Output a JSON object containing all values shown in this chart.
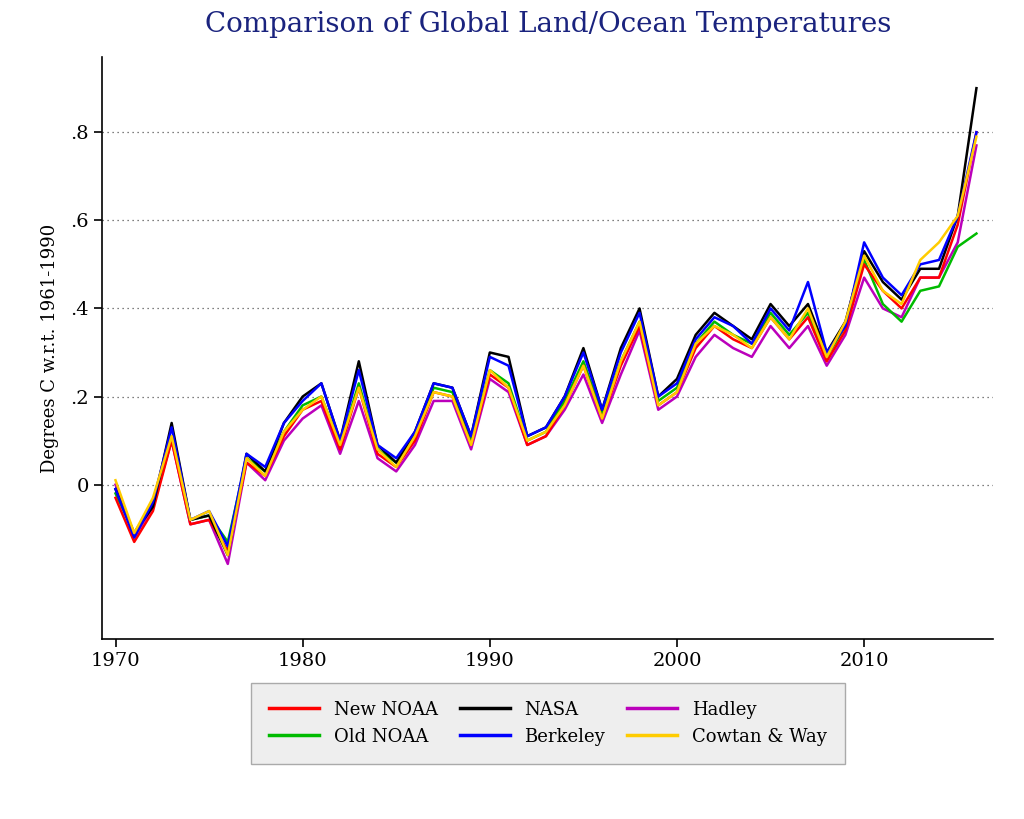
{
  "title": "Comparison of Global Land/Ocean Temperatures",
  "ylabel": "Degrees C w.r.t. 1961-1990",
  "xlim": [
    1969.3,
    2016.9
  ],
  "ylim": [
    -0.35,
    0.97
  ],
  "yticks": [
    0.0,
    0.2,
    0.4,
    0.6,
    0.8
  ],
  "ytick_labels": [
    "0",
    ".2",
    ".4",
    ".6",
    ".8"
  ],
  "xticks": [
    1970,
    1980,
    1990,
    2000,
    2010
  ],
  "title_color": "#1a237e",
  "title_fontsize": 20,
  "background_color": "#ffffff",
  "series": {
    "New NOAA": {
      "color": "#ff0000",
      "lw": 1.8,
      "zorder": 4,
      "years": [
        1970,
        1971,
        1972,
        1973,
        1974,
        1975,
        1976,
        1977,
        1978,
        1979,
        1980,
        1981,
        1982,
        1983,
        1984,
        1985,
        1986,
        1987,
        1988,
        1989,
        1990,
        1991,
        1992,
        1993,
        1994,
        1995,
        1996,
        1997,
        1998,
        1999,
        2000,
        2001,
        2002,
        2003,
        2004,
        2005,
        2006,
        2007,
        2008,
        2009,
        2010,
        2011,
        2012,
        2013,
        2014,
        2015,
        2016
      ],
      "values": [
        -0.03,
        -0.13,
        -0.06,
        0.1,
        -0.09,
        -0.08,
        -0.15,
        0.05,
        0.02,
        0.11,
        0.17,
        0.19,
        0.08,
        0.22,
        0.07,
        0.04,
        0.1,
        0.21,
        0.2,
        0.09,
        0.25,
        0.22,
        0.09,
        0.11,
        0.18,
        0.27,
        0.15,
        0.27,
        0.36,
        0.18,
        0.21,
        0.31,
        0.36,
        0.33,
        0.31,
        0.38,
        0.33,
        0.38,
        0.28,
        0.35,
        0.5,
        0.44,
        0.4,
        0.47,
        0.47,
        0.59,
        0.8
      ]
    },
    "Old NOAA": {
      "color": "#00bb00",
      "lw": 1.8,
      "zorder": 3,
      "years": [
        1970,
        1971,
        1972,
        1973,
        1974,
        1975,
        1976,
        1977,
        1978,
        1979,
        1980,
        1981,
        1982,
        1983,
        1984,
        1985,
        1986,
        1987,
        1988,
        1989,
        1990,
        1991,
        1992,
        1993,
        1994,
        1995,
        1996,
        1997,
        1998,
        1999,
        2000,
        2001,
        2002,
        2003,
        2004,
        2005,
        2006,
        2007,
        2008,
        2009,
        2010,
        2011,
        2012,
        2013,
        2014,
        2015,
        2016
      ],
      "values": [
        -0.02,
        -0.11,
        -0.04,
        0.11,
        -0.08,
        -0.07,
        -0.13,
        0.06,
        0.03,
        0.12,
        0.18,
        0.2,
        0.09,
        0.23,
        0.08,
        0.05,
        0.11,
        0.22,
        0.21,
        0.1,
        0.26,
        0.23,
        0.1,
        0.12,
        0.19,
        0.28,
        0.16,
        0.28,
        0.37,
        0.19,
        0.22,
        0.32,
        0.37,
        0.34,
        0.32,
        0.39,
        0.34,
        0.39,
        0.29,
        0.36,
        0.51,
        0.41,
        0.37,
        0.44,
        0.45,
        0.54,
        0.57
      ]
    },
    "NASA": {
      "color": "#000000",
      "lw": 1.8,
      "zorder": 5,
      "years": [
        1970,
        1971,
        1972,
        1973,
        1974,
        1975,
        1976,
        1977,
        1978,
        1979,
        1980,
        1981,
        1982,
        1983,
        1984,
        1985,
        1986,
        1987,
        1988,
        1989,
        1990,
        1991,
        1992,
        1993,
        1994,
        1995,
        1996,
        1997,
        1998,
        1999,
        2000,
        2001,
        2002,
        2003,
        2004,
        2005,
        2006,
        2007,
        2008,
        2009,
        2010,
        2011,
        2012,
        2013,
        2014,
        2015,
        2016
      ],
      "values": [
        -0.01,
        -0.11,
        -0.05,
        0.14,
        -0.08,
        -0.07,
        -0.16,
        0.07,
        0.03,
        0.14,
        0.2,
        0.23,
        0.1,
        0.28,
        0.09,
        0.05,
        0.12,
        0.23,
        0.22,
        0.11,
        0.3,
        0.29,
        0.11,
        0.13,
        0.2,
        0.31,
        0.17,
        0.31,
        0.4,
        0.2,
        0.24,
        0.34,
        0.39,
        0.36,
        0.33,
        0.41,
        0.36,
        0.41,
        0.3,
        0.37,
        0.53,
        0.46,
        0.42,
        0.49,
        0.49,
        0.61,
        0.9
      ]
    },
    "Berkeley": {
      "color": "#0000ff",
      "lw": 1.8,
      "zorder": 6,
      "years": [
        1970,
        1971,
        1972,
        1973,
        1974,
        1975,
        1976,
        1977,
        1978,
        1979,
        1980,
        1981,
        1982,
        1983,
        1984,
        1985,
        1986,
        1987,
        1988,
        1989,
        1990,
        1991,
        1992,
        1993,
        1994,
        1995,
        1996,
        1997,
        1998,
        1999,
        2000,
        2001,
        2002,
        2003,
        2004,
        2005,
        2006,
        2007,
        2008,
        2009,
        2010,
        2011,
        2012,
        2013,
        2014,
        2015,
        2016
      ],
      "values": [
        -0.01,
        -0.12,
        -0.04,
        0.13,
        -0.08,
        -0.06,
        -0.14,
        0.07,
        0.04,
        0.14,
        0.19,
        0.23,
        0.1,
        0.26,
        0.09,
        0.06,
        0.12,
        0.23,
        0.22,
        0.11,
        0.29,
        0.27,
        0.11,
        0.13,
        0.2,
        0.3,
        0.17,
        0.3,
        0.39,
        0.2,
        0.23,
        0.33,
        0.38,
        0.36,
        0.32,
        0.4,
        0.35,
        0.46,
        0.3,
        0.36,
        0.55,
        0.47,
        0.43,
        0.5,
        0.51,
        0.61,
        0.8
      ]
    },
    "Hadley": {
      "color": "#bb00bb",
      "lw": 1.8,
      "zorder": 2,
      "years": [
        1970,
        1971,
        1972,
        1973,
        1974,
        1975,
        1976,
        1977,
        1978,
        1979,
        1980,
        1981,
        1982,
        1983,
        1984,
        1985,
        1986,
        1987,
        1988,
        1989,
        1990,
        1991,
        1992,
        1993,
        1994,
        1995,
        1996,
        1997,
        1998,
        1999,
        2000,
        2001,
        2002,
        2003,
        2004,
        2005,
        2006,
        2007,
        2008,
        2009,
        2010,
        2011,
        2012,
        2013,
        2014,
        2015,
        2016
      ],
      "values": [
        0.0,
        -0.12,
        -0.05,
        0.1,
        -0.09,
        -0.08,
        -0.18,
        0.05,
        0.01,
        0.1,
        0.15,
        0.18,
        0.07,
        0.19,
        0.06,
        0.03,
        0.09,
        0.19,
        0.19,
        0.08,
        0.24,
        0.21,
        0.09,
        0.11,
        0.17,
        0.25,
        0.14,
        0.25,
        0.35,
        0.17,
        0.2,
        0.29,
        0.34,
        0.31,
        0.29,
        0.36,
        0.31,
        0.36,
        0.27,
        0.34,
        0.47,
        0.4,
        0.38,
        0.47,
        0.47,
        0.55,
        0.77
      ]
    },
    "Cowtan & Way": {
      "color": "#ffcc00",
      "lw": 1.8,
      "zorder": 7,
      "years": [
        1970,
        1971,
        1972,
        1973,
        1974,
        1975,
        1976,
        1977,
        1978,
        1979,
        1980,
        1981,
        1982,
        1983,
        1984,
        1985,
        1986,
        1987,
        1988,
        1989,
        1990,
        1991,
        1992,
        1993,
        1994,
        1995,
        1996,
        1997,
        1998,
        1999,
        2000,
        2001,
        2002,
        2003,
        2004,
        2005,
        2006,
        2007,
        2008,
        2009,
        2010,
        2011,
        2012,
        2013,
        2014,
        2015,
        2016
      ],
      "values": [
        0.01,
        -0.11,
        -0.03,
        0.11,
        -0.08,
        -0.06,
        -0.16,
        0.06,
        0.02,
        0.12,
        0.17,
        0.2,
        0.09,
        0.22,
        0.08,
        0.04,
        0.11,
        0.21,
        0.2,
        0.09,
        0.26,
        0.22,
        0.1,
        0.12,
        0.18,
        0.27,
        0.15,
        0.28,
        0.37,
        0.18,
        0.21,
        0.32,
        0.36,
        0.34,
        0.31,
        0.38,
        0.33,
        0.4,
        0.29,
        0.37,
        0.52,
        0.44,
        0.41,
        0.51,
        0.55,
        0.61,
        0.79
      ]
    }
  },
  "legend_order": [
    "New NOAA",
    "Old NOAA",
    "NASA",
    "Berkeley",
    "Hadley",
    "Cowtan & Way"
  ],
  "legend_ncol": 3,
  "legend_facecolor": "#eeeeee",
  "legend_edgecolor": "#aaaaaa"
}
